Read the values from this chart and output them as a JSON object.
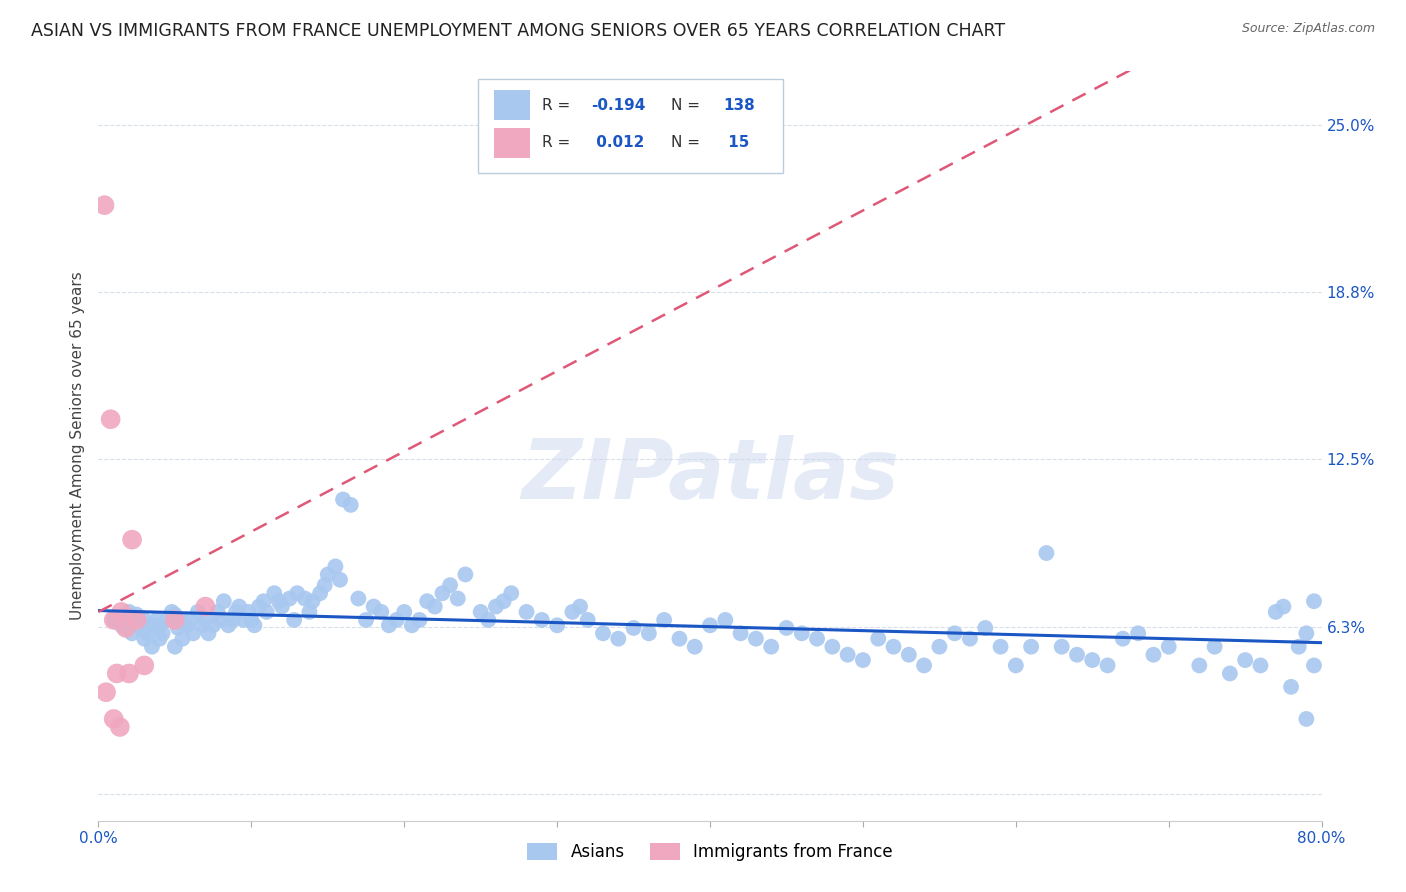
{
  "title": "ASIAN VS IMMIGRANTS FROM FRANCE UNEMPLOYMENT AMONG SENIORS OVER 65 YEARS CORRELATION CHART",
  "source": "Source: ZipAtlas.com",
  "ylabel": "Unemployment Among Seniors over 65 years",
  "xlim": [
    0.0,
    0.8
  ],
  "ylim": [
    -0.01,
    0.27
  ],
  "color_asian": "#a8c8f0",
  "color_france": "#f0a8c0",
  "color_trend_asian": "#1a56c4",
  "color_trend_france": "#e05878",
  "background_color": "#ffffff",
  "grid_color": "#d8dfe8",
  "title_fontsize": 12.5,
  "axis_label_fontsize": 11,
  "tick_fontsize": 11,
  "asian_x": [
    0.01,
    0.015,
    0.018,
    0.02,
    0.022,
    0.025,
    0.028,
    0.03,
    0.03,
    0.032,
    0.035,
    0.035,
    0.038,
    0.04,
    0.04,
    0.042,
    0.045,
    0.048,
    0.05,
    0.05,
    0.052,
    0.055,
    0.055,
    0.058,
    0.06,
    0.062,
    0.065,
    0.068,
    0.07,
    0.072,
    0.075,
    0.078,
    0.08,
    0.082,
    0.085,
    0.088,
    0.09,
    0.092,
    0.095,
    0.098,
    0.1,
    0.102,
    0.105,
    0.108,
    0.11,
    0.115,
    0.118,
    0.12,
    0.125,
    0.128,
    0.13,
    0.135,
    0.138,
    0.14,
    0.145,
    0.148,
    0.15,
    0.155,
    0.158,
    0.16,
    0.165,
    0.17,
    0.175,
    0.18,
    0.185,
    0.19,
    0.195,
    0.2,
    0.205,
    0.21,
    0.215,
    0.22,
    0.225,
    0.23,
    0.235,
    0.24,
    0.25,
    0.255,
    0.26,
    0.265,
    0.27,
    0.28,
    0.29,
    0.3,
    0.31,
    0.315,
    0.32,
    0.33,
    0.34,
    0.35,
    0.36,
    0.37,
    0.38,
    0.39,
    0.4,
    0.41,
    0.42,
    0.43,
    0.44,
    0.45,
    0.46,
    0.47,
    0.48,
    0.49,
    0.5,
    0.51,
    0.52,
    0.53,
    0.54,
    0.55,
    0.56,
    0.57,
    0.58,
    0.59,
    0.6,
    0.61,
    0.62,
    0.63,
    0.64,
    0.65,
    0.66,
    0.67,
    0.68,
    0.69,
    0.7,
    0.72,
    0.73,
    0.74,
    0.75,
    0.76,
    0.77,
    0.775,
    0.78,
    0.785,
    0.79,
    0.79,
    0.795,
    0.795
  ],
  "asian_y": [
    0.065,
    0.063,
    0.062,
    0.068,
    0.06,
    0.067,
    0.062,
    0.065,
    0.058,
    0.06,
    0.063,
    0.055,
    0.065,
    0.063,
    0.058,
    0.06,
    0.065,
    0.068,
    0.067,
    0.055,
    0.062,
    0.065,
    0.058,
    0.063,
    0.065,
    0.06,
    0.068,
    0.063,
    0.065,
    0.06,
    0.063,
    0.068,
    0.065,
    0.072,
    0.063,
    0.065,
    0.068,
    0.07,
    0.065,
    0.068,
    0.065,
    0.063,
    0.07,
    0.072,
    0.068,
    0.075,
    0.072,
    0.07,
    0.073,
    0.065,
    0.075,
    0.073,
    0.068,
    0.072,
    0.075,
    0.078,
    0.082,
    0.085,
    0.08,
    0.11,
    0.108,
    0.073,
    0.065,
    0.07,
    0.068,
    0.063,
    0.065,
    0.068,
    0.063,
    0.065,
    0.072,
    0.07,
    0.075,
    0.078,
    0.073,
    0.082,
    0.068,
    0.065,
    0.07,
    0.072,
    0.075,
    0.068,
    0.065,
    0.063,
    0.068,
    0.07,
    0.065,
    0.06,
    0.058,
    0.062,
    0.06,
    0.065,
    0.058,
    0.055,
    0.063,
    0.065,
    0.06,
    0.058,
    0.055,
    0.062,
    0.06,
    0.058,
    0.055,
    0.052,
    0.05,
    0.058,
    0.055,
    0.052,
    0.048,
    0.055,
    0.06,
    0.058,
    0.062,
    0.055,
    0.048,
    0.055,
    0.09,
    0.055,
    0.052,
    0.05,
    0.048,
    0.058,
    0.06,
    0.052,
    0.055,
    0.048,
    0.055,
    0.045,
    0.05,
    0.048,
    0.068,
    0.07,
    0.04,
    0.055,
    0.028,
    0.06,
    0.072,
    0.048
  ],
  "france_x": [
    0.004,
    0.005,
    0.008,
    0.01,
    0.01,
    0.012,
    0.014,
    0.015,
    0.018,
    0.02,
    0.022,
    0.025,
    0.03,
    0.05,
    0.07
  ],
  "france_y": [
    0.22,
    0.038,
    0.14,
    0.065,
    0.028,
    0.045,
    0.025,
    0.068,
    0.062,
    0.045,
    0.095,
    0.065,
    0.048,
    0.065,
    0.07
  ],
  "ytick_vals": [
    0.0,
    0.0625,
    0.125,
    0.1875,
    0.25
  ],
  "ytick_labels": [
    "",
    "6.3%",
    "12.5%",
    "18.8%",
    "25.0%"
  ]
}
